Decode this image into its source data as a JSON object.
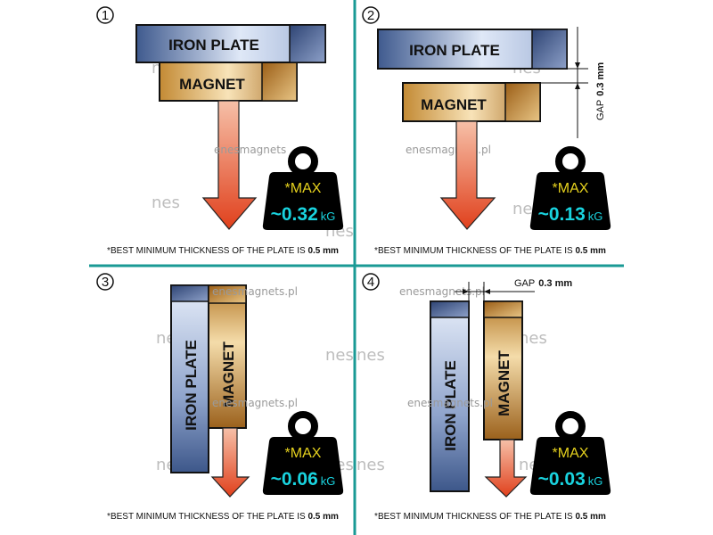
{
  "colors": {
    "divider": "#1a9a95",
    "iron": "#8ea3cc",
    "magnet": "#d8a450",
    "arrow": "#e0401c",
    "weight": "#000000",
    "max_text": "#e6d21e",
    "value_text": "#19d3df"
  },
  "labels": {
    "iron_plate": "IRON PLATE",
    "iron_plate_vertical": "IRON  PLATE",
    "iron_plate_vertical_4": "IRON PLATE",
    "magnet": "MAGNET"
  },
  "watermark": {
    "site": "enesmagnets.pl",
    "site_partial": "enesmagnets",
    "logo": "nes"
  },
  "panels": [
    {
      "number": "1",
      "max_label": "*MAX",
      "value": "~0.32",
      "unit": "kG",
      "footnote": "*BEST MINIMUM THICKNESS OF THE PLATE IS ",
      "footnote_bold": "0.5 mm"
    },
    {
      "number": "2",
      "max_label": "*MAX",
      "value": "~0.13",
      "unit": "kG",
      "footnote": "*BEST MINIMUM THICKNESS OF THE PLATE IS ",
      "footnote_bold": "0.5 mm",
      "gap_label": "GAP",
      "gap_value": "0.3 mm"
    },
    {
      "number": "3",
      "max_label": "*MAX",
      "value": "~0.06",
      "unit": "kG",
      "footnote": "*BEST MINIMUM THICKNESS OF THE PLATE IS ",
      "footnote_bold": "0.5 mm"
    },
    {
      "number": "4",
      "max_label": "*MAX",
      "value": "~0.03",
      "unit": "kG",
      "footnote": "*BEST MINIMUM THICKNESS OF THE PLATE IS ",
      "footnote_bold": "0.5 mm",
      "gap_label": "GAP",
      "gap_value": "0.3 mm"
    }
  ]
}
